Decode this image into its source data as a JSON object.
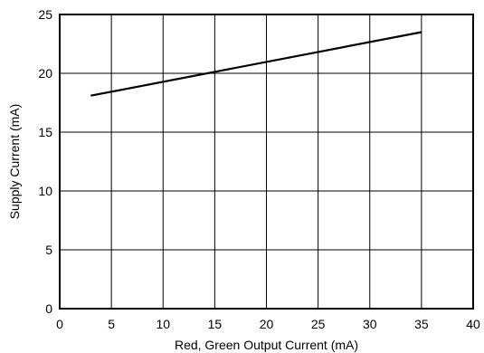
{
  "chart_data": {
    "type": "line",
    "title": "",
    "xlabel": "Red, Green Output Current (mA)",
    "ylabel": "Supply Current (mA)",
    "xlim": [
      0,
      40
    ],
    "ylim": [
      0,
      25
    ],
    "x_ticks": [
      0,
      5,
      10,
      15,
      20,
      25,
      30,
      35,
      40
    ],
    "y_ticks": [
      0,
      5,
      10,
      15,
      20,
      25
    ],
    "x_tick_labels": [
      "0",
      "5",
      "10",
      "15",
      "20",
      "25",
      "30",
      "35",
      "40"
    ],
    "y_tick_labels": [
      "0",
      "5",
      "10",
      "15",
      "20",
      "25"
    ],
    "grid": true,
    "legend": "none",
    "series": [
      {
        "x": [
          3,
          35
        ],
        "y": [
          18.1,
          23.5
        ]
      }
    ],
    "colors": {
      "line": "#000000",
      "grid": "#000000",
      "background": "#ffffff"
    }
  }
}
